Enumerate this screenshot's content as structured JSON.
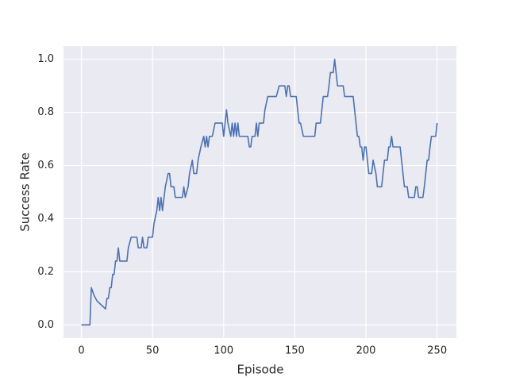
{
  "chart_data": {
    "type": "line",
    "x_label": "Episode",
    "y_label": "Success Rate",
    "xlim": [
      -12.55,
      263.55
    ],
    "ylim": [
      -0.05,
      1.05
    ],
    "xticks": [
      0,
      50,
      100,
      150,
      200,
      250
    ],
    "yticks": [
      {
        "value": 0,
        "label": "0.0"
      },
      0.2,
      0.4,
      0.6,
      0.8,
      {
        "value": 1,
        "label": "1.0"
      }
    ],
    "grid": true,
    "series": [
      {
        "name": "Success Rate",
        "color": "#4c72b0",
        "x": [
          0,
          6,
          7,
          9,
          11,
          13,
          15,
          17,
          18,
          19,
          20,
          21,
          22,
          23,
          24,
          25,
          26,
          27,
          32,
          33,
          35,
          39,
          40,
          42,
          43,
          44,
          46,
          47,
          50,
          51,
          53,
          54,
          55,
          56,
          57,
          59,
          61,
          62,
          63,
          65,
          66,
          71,
          72,
          73,
          75,
          76,
          78,
          79,
          81,
          82,
          84,
          86,
          87,
          88,
          89,
          90,
          92,
          94,
          99,
          100,
          102,
          103,
          105,
          106,
          107,
          108,
          109,
          110,
          111,
          117,
          118,
          119,
          120,
          122,
          123,
          124,
          125,
          128,
          129,
          131,
          137,
          139,
          143,
          144,
          145,
          146,
          147,
          151,
          152,
          153,
          154,
          156,
          164,
          165,
          168,
          169,
          170,
          173,
          174,
          175,
          177,
          178,
          179,
          180,
          184,
          185,
          191,
          192,
          193,
          194,
          195,
          196,
          197,
          198,
          199,
          200,
          201,
          202,
          204,
          205,
          207,
          208,
          211,
          212,
          213,
          215,
          216,
          217,
          218,
          219,
          224,
          225,
          226,
          227,
          229,
          230,
          234,
          235,
          236,
          237,
          240,
          241,
          242,
          243,
          244,
          245,
          246,
          249,
          250
        ],
        "values": [
          0,
          0,
          0.14,
          0.11,
          0.09,
          0.08,
          0.07,
          0.06,
          0.1,
          0.1,
          0.14,
          0.14,
          0.19,
          0.19,
          0.24,
          0.24,
          0.29,
          0.24,
          0.24,
          0.29,
          0.33,
          0.33,
          0.29,
          0.29,
          0.33,
          0.29,
          0.29,
          0.33,
          0.33,
          0.38,
          0.43,
          0.48,
          0.43,
          0.48,
          0.43,
          0.52,
          0.57,
          0.57,
          0.52,
          0.52,
          0.48,
          0.48,
          0.52,
          0.48,
          0.52,
          0.57,
          0.62,
          0.57,
          0.57,
          0.62,
          0.67,
          0.71,
          0.67,
          0.71,
          0.67,
          0.71,
          0.71,
          0.76,
          0.76,
          0.71,
          0.81,
          0.76,
          0.71,
          0.76,
          0.71,
          0.76,
          0.71,
          0.76,
          0.71,
          0.71,
          0.67,
          0.67,
          0.71,
          0.71,
          0.76,
          0.71,
          0.76,
          0.76,
          0.81,
          0.86,
          0.86,
          0.9,
          0.9,
          0.86,
          0.9,
          0.9,
          0.86,
          0.86,
          0.81,
          0.76,
          0.76,
          0.71,
          0.71,
          0.76,
          0.76,
          0.81,
          0.86,
          0.86,
          0.9,
          0.95,
          0.95,
          1,
          0.95,
          0.9,
          0.9,
          0.86,
          0.86,
          0.81,
          0.76,
          0.71,
          0.71,
          0.67,
          0.67,
          0.62,
          0.67,
          0.67,
          0.62,
          0.57,
          0.57,
          0.62,
          0.57,
          0.52,
          0.52,
          0.57,
          0.62,
          0.62,
          0.67,
          0.67,
          0.71,
          0.67,
          0.67,
          0.62,
          0.57,
          0.52,
          0.52,
          0.48,
          0.48,
          0.52,
          0.52,
          0.48,
          0.48,
          0.52,
          0.57,
          0.62,
          0.62,
          0.67,
          0.71,
          0.71,
          0.76
        ]
      }
    ]
  }
}
